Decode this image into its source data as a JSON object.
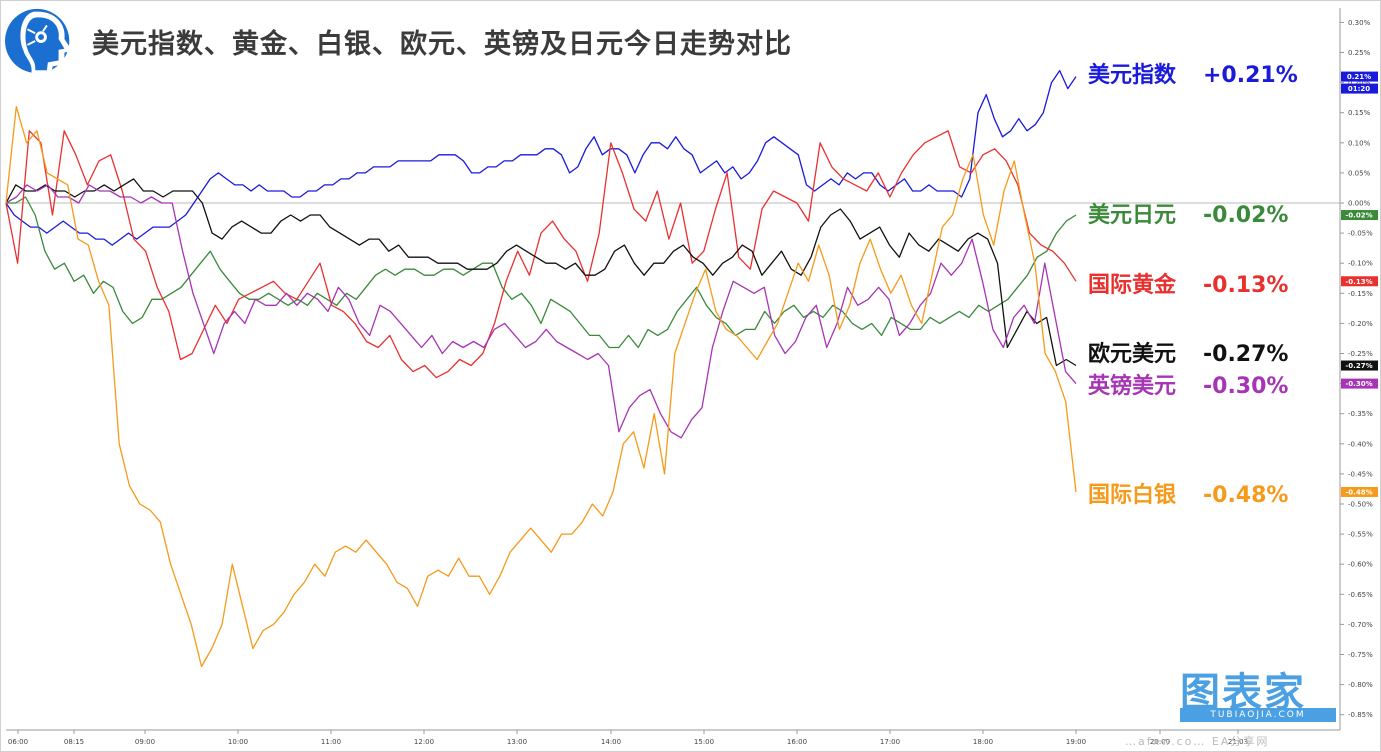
{
  "header": {
    "title": "美元指数、黄金、白银、欧元、英镑及日元今日走势对比"
  },
  "watermark": {
    "brand": "图表家",
    "url": "TUBIAOJIA.COM",
    "tail": "…afxw.co… EA分享网"
  },
  "chart_data": {
    "type": "line",
    "title": "美元指数、黄金、白银、欧元、英镑及日元今日走势对比",
    "x_ticks": [
      "06:00",
      "08:15",
      "09:00",
      "10:00",
      "11:00",
      "12:00",
      "13:00",
      "14:00",
      "15:00",
      "16:00",
      "17:00",
      "18:00",
      "19:00",
      "20:00",
      "21:03"
    ],
    "y_ticks": [
      "0.30%",
      "0.25%",
      "0.20%",
      "0.15%",
      "0.10%",
      "0.05%",
      "0.00%",
      "-0.05%",
      "-0.10%",
      "-0.15%",
      "-0.20%",
      "-0.25%",
      "-0.30%",
      "-0.35%",
      "-0.40%",
      "-0.45%",
      "-0.50%",
      "-0.55%",
      "-0.60%",
      "-0.65%",
      "-0.70%",
      "-0.75%",
      "-0.80%",
      "-0.85%"
    ],
    "ylim": [
      -0.85,
      0.3
    ],
    "y_unit": "%",
    "extra_tag": "01:20",
    "series": [
      {
        "name": "美元指数",
        "label": "+0.21%",
        "color": "#1a1adb",
        "tag": "0.21%",
        "final": 0.21,
        "values": [
          0,
          -0.02,
          -0.03,
          -0.04,
          -0.04,
          -0.05,
          -0.04,
          -0.03,
          -0.04,
          -0.05,
          -0.05,
          -0.06,
          -0.06,
          -0.07,
          -0.06,
          -0.05,
          -0.06,
          -0.05,
          -0.04,
          -0.04,
          -0.04,
          -0.03,
          -0.02,
          0.0,
          0.02,
          0.04,
          0.05,
          0.04,
          0.03,
          0.03,
          0.02,
          0.03,
          0.02,
          0.02,
          0.02,
          0.01,
          0.01,
          0.02,
          0.02,
          0.03,
          0.03,
          0.04,
          0.04,
          0.05,
          0.05,
          0.06,
          0.06,
          0.06,
          0.07,
          0.07,
          0.07,
          0.07,
          0.07,
          0.08,
          0.08,
          0.08,
          0.07,
          0.05,
          0.05,
          0.06,
          0.06,
          0.07,
          0.07,
          0.08,
          0.08,
          0.08,
          0.09,
          0.09,
          0.08,
          0.05,
          0.06,
          0.09,
          0.11,
          0.08,
          0.09,
          0.09,
          0.08,
          0.05,
          0.08,
          0.1,
          0.1,
          0.09,
          0.11,
          0.09,
          0.08,
          0.05,
          0.06,
          0.07,
          0.05,
          0.06,
          0.04,
          0.05,
          0.07,
          0.1,
          0.11,
          0.1,
          0.09,
          0.08,
          0.03,
          0.02,
          0.03,
          0.04,
          0.03,
          0.05,
          0.04,
          0.05,
          0.05,
          0.03,
          0.02,
          0.03,
          0.04,
          0.02,
          0.02,
          0.03,
          0.02,
          0.02,
          0.02,
          0.01,
          0.04,
          0.15,
          0.18,
          0.14,
          0.11,
          0.12,
          0.14,
          0.12,
          0.13,
          0.15,
          0.2,
          0.22,
          0.19,
          0.21
        ]
      },
      {
        "name": "美元日元",
        "label": "-0.02%",
        "color": "#3a8a3a",
        "tag": "-0.02%",
        "final": -0.02,
        "values": [
          0,
          0.0,
          0.01,
          -0.02,
          -0.08,
          -0.11,
          -0.1,
          -0.13,
          -0.12,
          -0.15,
          -0.13,
          -0.14,
          -0.18,
          -0.2,
          -0.19,
          -0.16,
          -0.16,
          -0.15,
          -0.14,
          -0.12,
          -0.1,
          -0.08,
          -0.11,
          -0.13,
          -0.15,
          -0.16,
          -0.16,
          -0.15,
          -0.16,
          -0.17,
          -0.16,
          -0.17,
          -0.15,
          -0.16,
          -0.17,
          -0.15,
          -0.16,
          -0.14,
          -0.12,
          -0.11,
          -0.12,
          -0.11,
          -0.11,
          -0.12,
          -0.12,
          -0.11,
          -0.11,
          -0.12,
          -0.11,
          -0.1,
          -0.1,
          -0.14,
          -0.16,
          -0.15,
          -0.17,
          -0.2,
          -0.16,
          -0.17,
          -0.18,
          -0.2,
          -0.22,
          -0.22,
          -0.24,
          -0.24,
          -0.22,
          -0.24,
          -0.21,
          -0.22,
          -0.21,
          -0.18,
          -0.16,
          -0.14,
          -0.17,
          -0.19,
          -0.2,
          -0.22,
          -0.21,
          -0.21,
          -0.18,
          -0.2,
          -0.18,
          -0.17,
          -0.19,
          -0.18,
          -0.19,
          -0.17,
          -0.18,
          -0.2,
          -0.21,
          -0.2,
          -0.22,
          -0.19,
          -0.2,
          -0.21,
          -0.21,
          -0.19,
          -0.2,
          -0.19,
          -0.18,
          -0.19,
          -0.17,
          -0.18,
          -0.17,
          -0.16,
          -0.14,
          -0.12,
          -0.09,
          -0.08,
          -0.05,
          -0.03,
          -0.02
        ]
      },
      {
        "name": "国际黄金",
        "label": "-0.13%",
        "color": "#e8312f",
        "tag": "-0.13%",
        "final": -0.13,
        "values": [
          0,
          -0.1,
          0.12,
          0.1,
          -0.02,
          0.12,
          0.08,
          0.03,
          0.07,
          0.08,
          0.02,
          -0.06,
          -0.08,
          -0.14,
          -0.18,
          -0.26,
          -0.25,
          -0.21,
          -0.17,
          -0.2,
          -0.16,
          -0.15,
          -0.14,
          -0.13,
          -0.15,
          -0.16,
          -0.13,
          -0.1,
          -0.17,
          -0.18,
          -0.2,
          -0.23,
          -0.24,
          -0.22,
          -0.26,
          -0.28,
          -0.27,
          -0.29,
          -0.28,
          -0.26,
          -0.27,
          -0.25,
          -0.2,
          -0.13,
          -0.08,
          -0.12,
          -0.05,
          -0.03,
          -0.06,
          -0.08,
          -0.13,
          -0.05,
          0.1,
          0.05,
          -0.01,
          -0.03,
          0.02,
          -0.06,
          0.0,
          -0.1,
          -0.08,
          -0.01,
          0.05,
          -0.09,
          -0.11,
          -0.01,
          0.02,
          0.01,
          0.0,
          -0.03,
          0.1,
          0.06,
          0.04,
          0.03,
          0.02,
          0.05,
          0.01,
          0.05,
          0.08,
          0.1,
          0.11,
          0.12,
          0.06,
          0.05,
          0.08,
          0.09,
          0.07,
          0.03,
          -0.05,
          -0.07,
          -0.08,
          -0.1,
          -0.13
        ]
      },
      {
        "name": "欧元美元",
        "label": "-0.27%",
        "color": "#111111",
        "tag": "-0.27%",
        "final": -0.27,
        "values": [
          0,
          0.03,
          0.02,
          0.02,
          0.03,
          0.02,
          0.02,
          0.01,
          0.02,
          0.02,
          0.03,
          0.02,
          0.03,
          0.04,
          0.02,
          0.02,
          0.01,
          0.02,
          0.02,
          0.02,
          0.0,
          -0.05,
          -0.06,
          -0.04,
          -0.03,
          -0.04,
          -0.05,
          -0.05,
          -0.03,
          -0.02,
          -0.03,
          -0.02,
          -0.02,
          -0.04,
          -0.05,
          -0.06,
          -0.07,
          -0.06,
          -0.06,
          -0.08,
          -0.07,
          -0.09,
          -0.09,
          -0.09,
          -0.1,
          -0.1,
          -0.1,
          -0.11,
          -0.11,
          -0.11,
          -0.1,
          -0.08,
          -0.07,
          -0.08,
          -0.09,
          -0.1,
          -0.1,
          -0.11,
          -0.1,
          -0.12,
          -0.12,
          -0.11,
          -0.08,
          -0.07,
          -0.1,
          -0.12,
          -0.1,
          -0.1,
          -0.08,
          -0.07,
          -0.09,
          -0.1,
          -0.12,
          -0.1,
          -0.09,
          -0.07,
          -0.08,
          -0.12,
          -0.1,
          -0.08,
          -0.11,
          -0.12,
          -0.09,
          -0.04,
          -0.02,
          -0.01,
          -0.03,
          -0.06,
          -0.05,
          -0.04,
          -0.07,
          -0.09,
          -0.05,
          -0.07,
          -0.08,
          -0.06,
          -0.07,
          -0.08,
          -0.06,
          -0.05,
          -0.06,
          -0.1,
          -0.24,
          -0.21,
          -0.18,
          -0.2,
          -0.19,
          -0.27,
          -0.26,
          -0.27
        ]
      },
      {
        "name": "英镑美元",
        "label": "-0.30%",
        "color": "#a634b4",
        "tag": "-0.30%",
        "final": -0.3,
        "values": [
          0,
          0.01,
          0.03,
          0.02,
          0.03,
          0.01,
          0.01,
          0.0,
          0.03,
          0.02,
          0.02,
          0.01,
          0.01,
          0.0,
          0.01,
          0.0,
          0.0,
          -0.08,
          -0.15,
          -0.2,
          -0.25,
          -0.2,
          -0.18,
          -0.2,
          -0.16,
          -0.17,
          -0.17,
          -0.15,
          -0.17,
          -0.15,
          -0.16,
          -0.18,
          -0.14,
          -0.16,
          -0.2,
          -0.22,
          -0.17,
          -0.18,
          -0.2,
          -0.22,
          -0.24,
          -0.22,
          -0.25,
          -0.23,
          -0.24,
          -0.23,
          -0.24,
          -0.21,
          -0.2,
          -0.22,
          -0.24,
          -0.23,
          -0.21,
          -0.23,
          -0.24,
          -0.25,
          -0.26,
          -0.25,
          -0.27,
          -0.38,
          -0.34,
          -0.32,
          -0.31,
          -0.35,
          -0.38,
          -0.39,
          -0.36,
          -0.34,
          -0.24,
          -0.18,
          -0.13,
          -0.14,
          -0.15,
          -0.14,
          -0.22,
          -0.25,
          -0.23,
          -0.19,
          -0.17,
          -0.24,
          -0.2,
          -0.14,
          -0.17,
          -0.16,
          -0.14,
          -0.16,
          -0.22,
          -0.2,
          -0.17,
          -0.15,
          -0.1,
          -0.12,
          -0.1,
          -0.06,
          -0.13,
          -0.21,
          -0.24,
          -0.19,
          -0.17,
          -0.2,
          -0.1,
          -0.19,
          -0.28,
          -0.3
        ]
      },
      {
        "name": "国际白银",
        "label": "-0.48%",
        "color": "#f59a1a",
        "tag": "-0.48%",
        "final": -0.48,
        "values": [
          0,
          0.16,
          0.1,
          0.12,
          0.05,
          0.04,
          0.03,
          -0.06,
          -0.07,
          -0.13,
          -0.17,
          -0.4,
          -0.47,
          -0.5,
          -0.51,
          -0.53,
          -0.6,
          -0.65,
          -0.7,
          -0.77,
          -0.74,
          -0.7,
          -0.6,
          -0.67,
          -0.74,
          -0.71,
          -0.7,
          -0.68,
          -0.65,
          -0.63,
          -0.6,
          -0.62,
          -0.58,
          -0.57,
          -0.58,
          -0.56,
          -0.58,
          -0.6,
          -0.63,
          -0.64,
          -0.67,
          -0.62,
          -0.61,
          -0.62,
          -0.59,
          -0.62,
          -0.62,
          -0.65,
          -0.62,
          -0.58,
          -0.56,
          -0.54,
          -0.56,
          -0.58,
          -0.55,
          -0.55,
          -0.53,
          -0.5,
          -0.52,
          -0.48,
          -0.4,
          -0.38,
          -0.44,
          -0.35,
          -0.45,
          -0.25,
          -0.2,
          -0.15,
          -0.11,
          -0.18,
          -0.21,
          -0.22,
          -0.24,
          -0.26,
          -0.23,
          -0.2,
          -0.15,
          -0.1,
          -0.13,
          -0.07,
          -0.12,
          -0.21,
          -0.17,
          -0.1,
          -0.06,
          -0.11,
          -0.15,
          -0.12,
          -0.17,
          -0.2,
          -0.12,
          -0.04,
          -0.02,
          0.04,
          0.08,
          -0.02,
          -0.07,
          0.02,
          0.07,
          -0.02,
          -0.1,
          -0.25,
          -0.28,
          -0.33,
          -0.48
        ]
      }
    ]
  }
}
